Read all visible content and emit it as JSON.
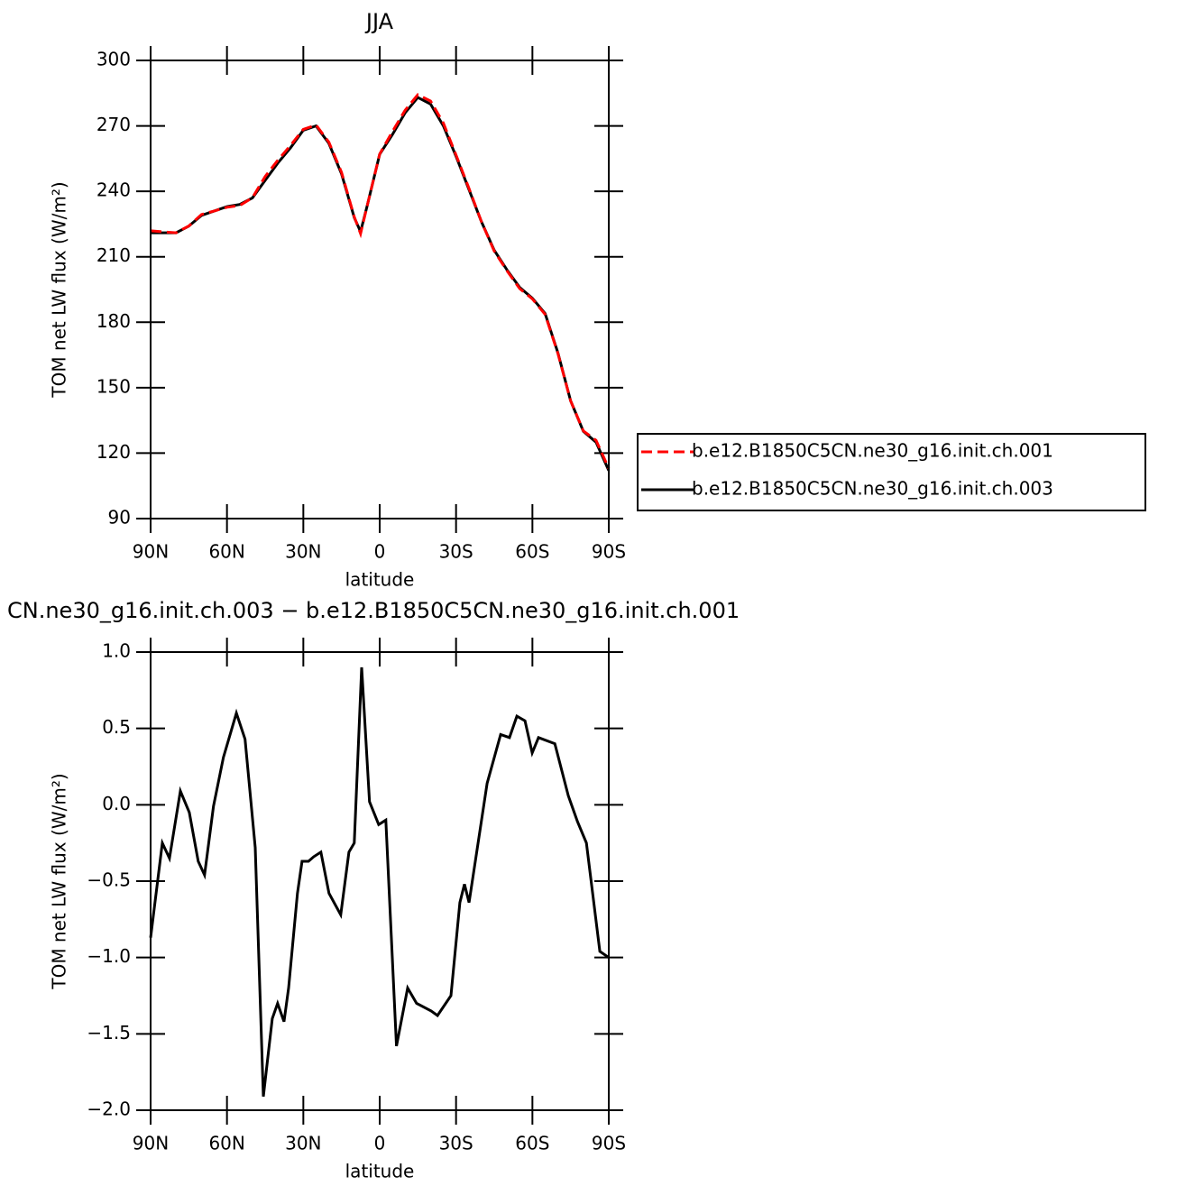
{
  "chart_data": [
    {
      "type": "line",
      "title": "JJA",
      "x_label": "latitude",
      "y_label": "TOM net LW flux (W/m²)",
      "x": [
        90,
        85,
        80,
        75,
        70,
        65,
        60,
        55,
        50,
        45,
        40,
        35,
        30,
        25,
        20,
        15,
        10,
        7.5,
        5,
        0,
        -5,
        -10,
        -15,
        -20,
        -25,
        -30,
        -35,
        -40,
        -45,
        -50,
        -55,
        -60,
        -65,
        -70,
        -75,
        -80,
        -85,
        -90
      ],
      "xlim": [
        90,
        -90
      ],
      "xticks": [
        {
          "value": 90,
          "label": "90N"
        },
        {
          "value": 60,
          "label": "60N"
        },
        {
          "value": 30,
          "label": "30N"
        },
        0,
        {
          "value": -30,
          "label": "30S"
        },
        {
          "value": -60,
          "label": "60S"
        },
        {
          "value": -90,
          "label": "90S"
        }
      ],
      "ylim": [
        90,
        300
      ],
      "yticks": [
        90,
        120,
        150,
        180,
        210,
        240,
        270,
        300
      ],
      "legend": "right",
      "series": [
        {
          "name": "b.e12.B1850C5CN.ne30_g16.init.ch.001",
          "color": "#ff0000",
          "linestyle": "dashed",
          "values": [
            221.9,
            221.4,
            221,
            224.1,
            229.4,
            231,
            232.7,
            233.5,
            237.1,
            246.8,
            254.3,
            261.1,
            268.4,
            270.4,
            262.6,
            248.7,
            228.3,
            220.6,
            233,
            257.1,
            267.4,
            277.2,
            284.3,
            281.4,
            271.3,
            256.6,
            241.6,
            226,
            212.6,
            203.6,
            195.4,
            190.7,
            183.6,
            165.7,
            144,
            130.2,
            125.9,
            113
          ]
        },
        {
          "name": "b.e12.B1850C5CN.ne30_g16.init.ch.003",
          "color": "#000000",
          "linestyle": "solid",
          "values": [
            221,
            221,
            221,
            224,
            229,
            231,
            233,
            234,
            237,
            245,
            253,
            260,
            268,
            270,
            262,
            248,
            228,
            221.5,
            233,
            257,
            266,
            276,
            283,
            280,
            270,
            256,
            241,
            226,
            213,
            204,
            196,
            191,
            184,
            166,
            144,
            130,
            125,
            112
          ]
        }
      ]
    },
    {
      "type": "line",
      "title": "CN.ne30_g16.init.ch.003 − b.e12.B1850C5CN.ne30_g16.init.ch.001",
      "x_label": "latitude",
      "y_label": "TOM net LW flux (W/m²)",
      "x": [
        90,
        85.4,
        82.6,
        78.3,
        74.8,
        71.3,
        68.8,
        65.3,
        61.4,
        56.3,
        52.9,
        48.9,
        45.7,
        42.2,
        40.1,
        37.6,
        35.8,
        32.3,
        30.5,
        28,
        25.9,
        23.1,
        19.9,
        15.3,
        12.1,
        10,
        7.1,
        4,
        0.4,
        -2.4,
        -6.6,
        -11,
        -14.5,
        -20.2,
        -22.7,
        -28,
        -31.5,
        -33.3,
        -35.1,
        -42.2,
        -47.5,
        -51,
        -53.9,
        -57.1,
        -59.9,
        -62.4,
        -68.8,
        -74.1,
        -77.7,
        -81.2,
        -86.5,
        -90
      ],
      "values": [
        -0.87,
        -0.25,
        -0.35,
        0.09,
        -0.05,
        -0.37,
        -0.46,
        -0.01,
        0.31,
        0.6,
        0.43,
        -0.28,
        -1.91,
        -1.4,
        -1.3,
        -1.42,
        -1.2,
        -0.58,
        -0.37,
        -0.37,
        -0.34,
        -0.31,
        -0.58,
        -0.72,
        -0.31,
        -0.25,
        0.9,
        0.02,
        -0.13,
        -0.1,
        -1.58,
        -1.2,
        -1.3,
        -1.35,
        -1.38,
        -1.25,
        -0.64,
        -0.52,
        -0.64,
        0.14,
        0.46,
        0.44,
        0.58,
        0.55,
        0.34,
        0.44,
        0.4,
        0.06,
        -0.11,
        -0.25,
        -0.96,
        -1.0
      ],
      "color": "#000000",
      "xlim": [
        90,
        -90
      ],
      "xticks": [
        {
          "value": 90,
          "label": "90N"
        },
        {
          "value": 60,
          "label": "60N"
        },
        {
          "value": 30,
          "label": "30N"
        },
        0,
        {
          "value": -30,
          "label": "30S"
        },
        {
          "value": -60,
          "label": "60S"
        },
        {
          "value": -90,
          "label": "90S"
        }
      ],
      "ylim": [
        -2,
        1
      ],
      "yticks": [
        {
          "value": -2,
          "label": "−2.0"
        },
        {
          "value": -1.5,
          "label": "−1.5"
        },
        {
          "value": -1,
          "label": "−1.0"
        },
        {
          "value": -0.5,
          "label": "−0.5"
        },
        {
          "value": 0,
          "label": "0.0"
        },
        {
          "value": 0.5,
          "label": "0.5"
        },
        {
          "value": 1,
          "label": "1.0"
        }
      ]
    }
  ]
}
